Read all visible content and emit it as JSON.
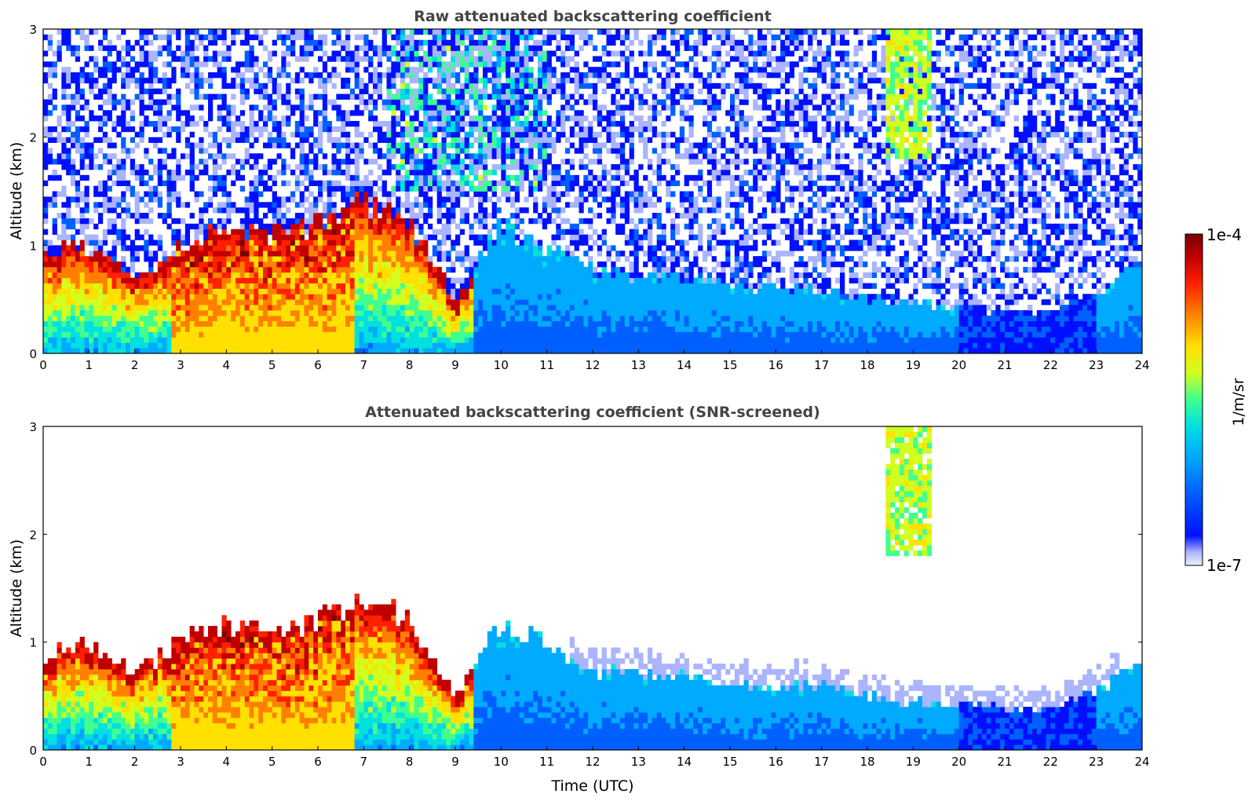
{
  "chart_data": [
    {
      "type": "heatmap",
      "title": "Raw attenuated backscattering coefficient",
      "xlabel": "",
      "ylabel": "Altitude (km)",
      "xlim": [
        0,
        24
      ],
      "ylim": [
        0,
        3
      ],
      "x_ticks": [
        "0",
        "1",
        "2",
        "3",
        "4",
        "5",
        "6",
        "7",
        "8",
        "9",
        "10",
        "11",
        "12",
        "13",
        "14",
        "15",
        "16",
        "17",
        "18",
        "19",
        "20",
        "21",
        "22",
        "23",
        "24"
      ],
      "y_ticks": [
        "0",
        "1",
        "2",
        "3"
      ],
      "screened": false,
      "boundary_layer_top_km": [
        {
          "t": 0,
          "h": 0.9
        },
        {
          "t": 1,
          "h": 1.0
        },
        {
          "t": 2,
          "h": 0.72
        },
        {
          "t": 3,
          "h": 1.0
        },
        {
          "t": 4,
          "h": 1.2
        },
        {
          "t": 5,
          "h": 1.1
        },
        {
          "t": 6,
          "h": 1.2
        },
        {
          "t": 7,
          "h": 1.4
        },
        {
          "t": 8,
          "h": 1.2
        },
        {
          "t": 9,
          "h": 0.5
        },
        {
          "t": 10,
          "h": 1.2
        },
        {
          "t": 11,
          "h": 0.95
        },
        {
          "t": 12,
          "h": 0.75
        },
        {
          "t": 13,
          "h": 0.72
        },
        {
          "t": 14,
          "h": 0.68
        },
        {
          "t": 15,
          "h": 0.62
        },
        {
          "t": 16,
          "h": 0.6
        },
        {
          "t": 17,
          "h": 0.6
        },
        {
          "t": 18,
          "h": 0.5
        },
        {
          "t": 19,
          "h": 0.45
        },
        {
          "t": 20,
          "h": 0.42
        },
        {
          "t": 21,
          "h": 0.4
        },
        {
          "t": 22,
          "h": 0.38
        },
        {
          "t": 23,
          "h": 0.55
        },
        {
          "t": 24,
          "h": 0.85
        }
      ]
    },
    {
      "type": "heatmap",
      "title": "Attenuated backscattering coefficient (SNR-screened)",
      "xlabel": "Time (UTC)",
      "ylabel": "Altitude (km)",
      "xlim": [
        0,
        24
      ],
      "ylim": [
        0,
        3
      ],
      "x_ticks": [
        "0",
        "1",
        "2",
        "3",
        "4",
        "5",
        "6",
        "7",
        "8",
        "9",
        "10",
        "11",
        "12",
        "13",
        "14",
        "15",
        "16",
        "17",
        "18",
        "19",
        "20",
        "21",
        "22",
        "23",
        "24"
      ],
      "y_ticks": [
        "0",
        "1",
        "2",
        "3"
      ],
      "screened": true
    }
  ],
  "colorbar": {
    "label": "1/m/sr",
    "max_label": "1e-4",
    "min_label": "1e-7",
    "scale": "log",
    "colormap": [
      "#eef0ff",
      "#aab4ff",
      "#0010ff",
      "#0060ff",
      "#00aaff",
      "#00e0e0",
      "#40ff90",
      "#d0ff20",
      "#ffe000",
      "#ff8000",
      "#ff2000",
      "#c00000",
      "#7a0000"
    ]
  }
}
